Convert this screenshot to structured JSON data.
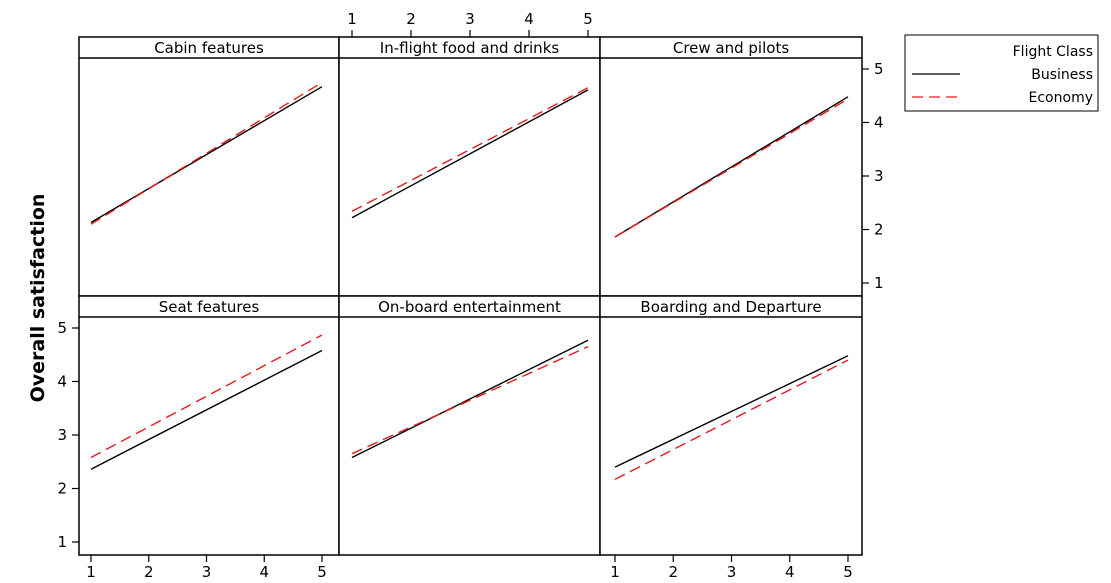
{
  "chart_data": {
    "type": "line",
    "ylabel": "Overall satisfaction",
    "xlim": [
      1,
      5
    ],
    "ylim": [
      1,
      5
    ],
    "ticks": [
      "1",
      "2",
      "3",
      "4",
      "5"
    ],
    "legend": {
      "title": "Flight Class",
      "placement": "right",
      "entries": [
        {
          "name": "Business",
          "color": "#000000",
          "dash": "solid"
        },
        {
          "name": "Economy",
          "color": "#e41a1c",
          "dash": "dashed"
        }
      ]
    },
    "panels": [
      {
        "title": "Cabin features",
        "series": [
          {
            "name": "Business",
            "x": [
              1,
              5
            ],
            "y": [
              2.13,
              4.67
            ]
          },
          {
            "name": "Economy",
            "x": [
              1,
              5
            ],
            "y": [
              2.1,
              4.75
            ]
          }
        ]
      },
      {
        "title": "In-flight food and drinks",
        "series": [
          {
            "name": "Business",
            "x": [
              1,
              5
            ],
            "y": [
              2.22,
              4.61
            ]
          },
          {
            "name": "Economy",
            "x": [
              1,
              5
            ],
            "y": [
              2.34,
              4.65
            ]
          }
        ]
      },
      {
        "title": "Crew and pilots",
        "series": [
          {
            "name": "Business",
            "x": [
              1,
              5
            ],
            "y": [
              1.86,
              4.48
            ]
          },
          {
            "name": "Economy",
            "x": [
              1,
              5
            ],
            "y": [
              1.86,
              4.44
            ]
          }
        ]
      },
      {
        "title": "Seat features",
        "series": [
          {
            "name": "Business",
            "x": [
              1,
              5
            ],
            "y": [
              2.36,
              4.58
            ]
          },
          {
            "name": "Economy",
            "x": [
              1,
              5
            ],
            "y": [
              2.58,
              4.87
            ]
          }
        ]
      },
      {
        "title": "On-board entertainment",
        "series": [
          {
            "name": "Business",
            "x": [
              1,
              5
            ],
            "y": [
              2.58,
              4.77
            ]
          },
          {
            "name": "Economy",
            "x": [
              1,
              5
            ],
            "y": [
              2.65,
              4.65
            ]
          }
        ]
      },
      {
        "title": "Boarding and Departure",
        "series": [
          {
            "name": "Business",
            "x": [
              1,
              5
            ],
            "y": [
              2.4,
              4.48
            ]
          },
          {
            "name": "Economy",
            "x": [
              1,
              5
            ],
            "y": [
              2.17,
              4.4
            ]
          }
        ]
      }
    ]
  }
}
